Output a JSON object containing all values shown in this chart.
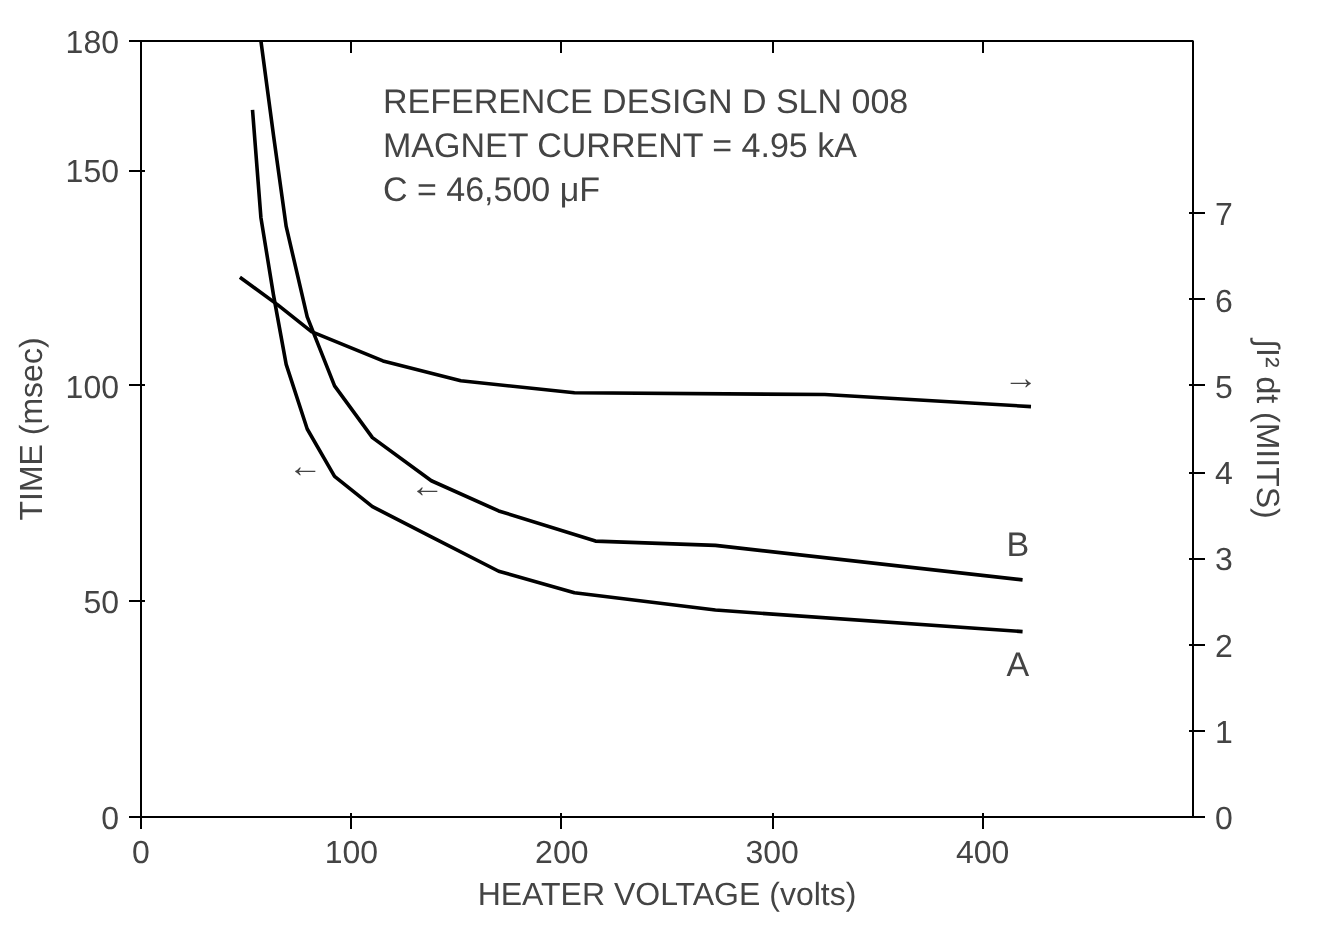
{
  "chart_data": {
    "type": "line",
    "xlabel": "HEATER VOLTAGE (volts)",
    "ylabel": "TIME (msec)",
    "y2label": "∫I² dt (MIITS)",
    "xlim": [
      0,
      500
    ],
    "xticks": [
      0,
      100,
      200,
      300,
      400
    ],
    "ylim": [
      0,
      180
    ],
    "yticks": [
      0,
      50,
      100,
      150,
      180
    ],
    "y2lim": [
      0,
      9
    ],
    "y2ticks": [
      0,
      1,
      2,
      3,
      4,
      5,
      6,
      7
    ],
    "grid": false,
    "marker": "none",
    "line_style": "solid",
    "series": [
      {
        "name": "A",
        "color": "#000000",
        "x": [
          53,
          57,
          63,
          69,
          79,
          92,
          110,
          138,
          170,
          206,
          273,
          419
        ],
        "values": [
          164,
          139,
          121,
          105,
          90,
          79,
          72,
          65,
          57,
          52,
          48,
          43
        ]
      },
      {
        "name": "B",
        "color": "#000000",
        "x": [
          57,
          63,
          69,
          79,
          92,
          110,
          138,
          170,
          216,
          273,
          419
        ],
        "values": [
          180,
          158,
          137,
          116,
          100,
          88,
          78,
          71,
          64,
          63,
          55
        ]
      },
      {
        "color": "#000000",
        "axis": "y2",
        "x": [
          47,
          65,
          81,
          115,
          152,
          206,
          325,
          423
        ],
        "values": [
          6.26,
          5.94,
          5.63,
          5.29,
          5.06,
          4.92,
          4.9,
          4.76
        ]
      }
    ],
    "annotations": [
      "REFERENCE DESIGN D   SLN 008",
      "MAGNET CURRENT = 4.95 kA",
      "C = 46,500 μF",
      "←",
      "←",
      "→"
    ]
  }
}
